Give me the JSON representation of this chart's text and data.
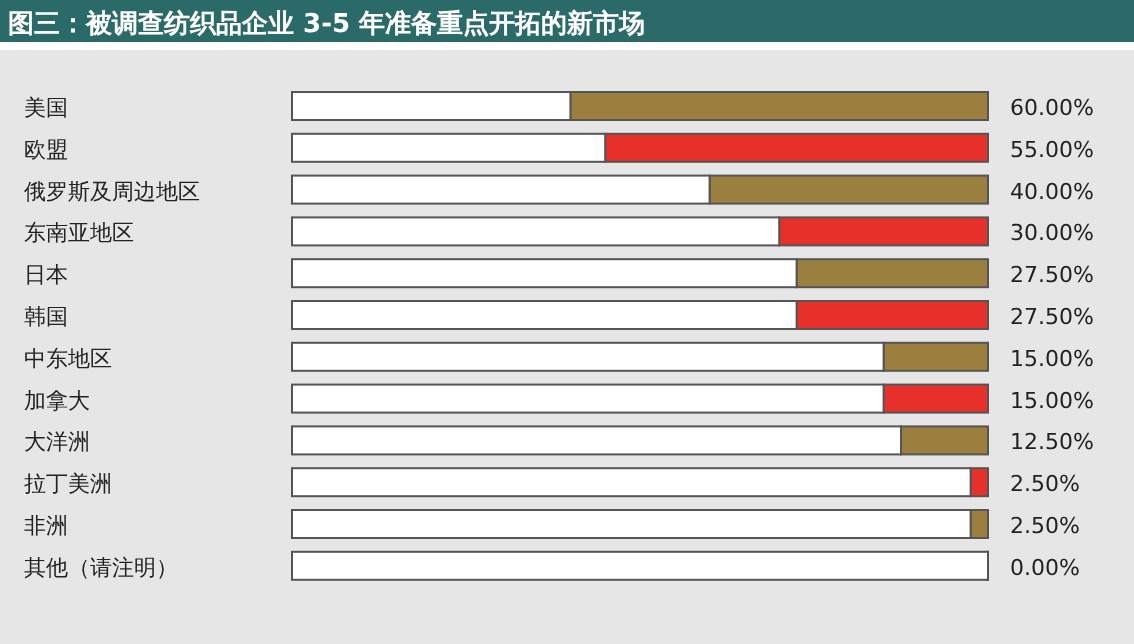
{
  "chart_data": {
    "type": "bar",
    "orientation": "horizontal",
    "stacked": true,
    "title": "图三：被调查纺织品企业 3-5 年准备重点开拓的新市场",
    "categories": [
      "美国",
      "欧盟",
      "俄罗斯及周边地区",
      "东南亚地区",
      "日本",
      "韩国",
      "中东地区",
      "加拿大",
      "大洋洲",
      "拉丁美洲",
      "非洲",
      "其他（请注明）"
    ],
    "series": [
      {
        "values": [
          60,
          55,
          40,
          30,
          27.5,
          27.5,
          15,
          15,
          12.5,
          2.5,
          2.5,
          0
        ],
        "value_labels": [
          "60.00%",
          "55.00%",
          "40.00%",
          "30.00%",
          "27.50%",
          "27.50%",
          "15.00%",
          "15.00%",
          "12.50%",
          "2.50%",
          "2.50%",
          "0.00%"
        ],
        "colors": [
          "#9a7f3e",
          "#e8302a",
          "#9a7f3e",
          "#e8302a",
          "#9a7f3e",
          "#e8302a",
          "#9a7f3e",
          "#e8302a",
          "#9a7f3e",
          "#e8302a",
          "#9a7f3e",
          "#e8302a"
        ]
      },
      {
        "values": [
          40,
          45,
          60,
          70,
          72.5,
          72.5,
          85,
          85,
          87.5,
          97.5,
          97.5,
          100
        ],
        "color": "#ffffff"
      }
    ],
    "xlim": [
      100,
      0
    ]
  }
}
